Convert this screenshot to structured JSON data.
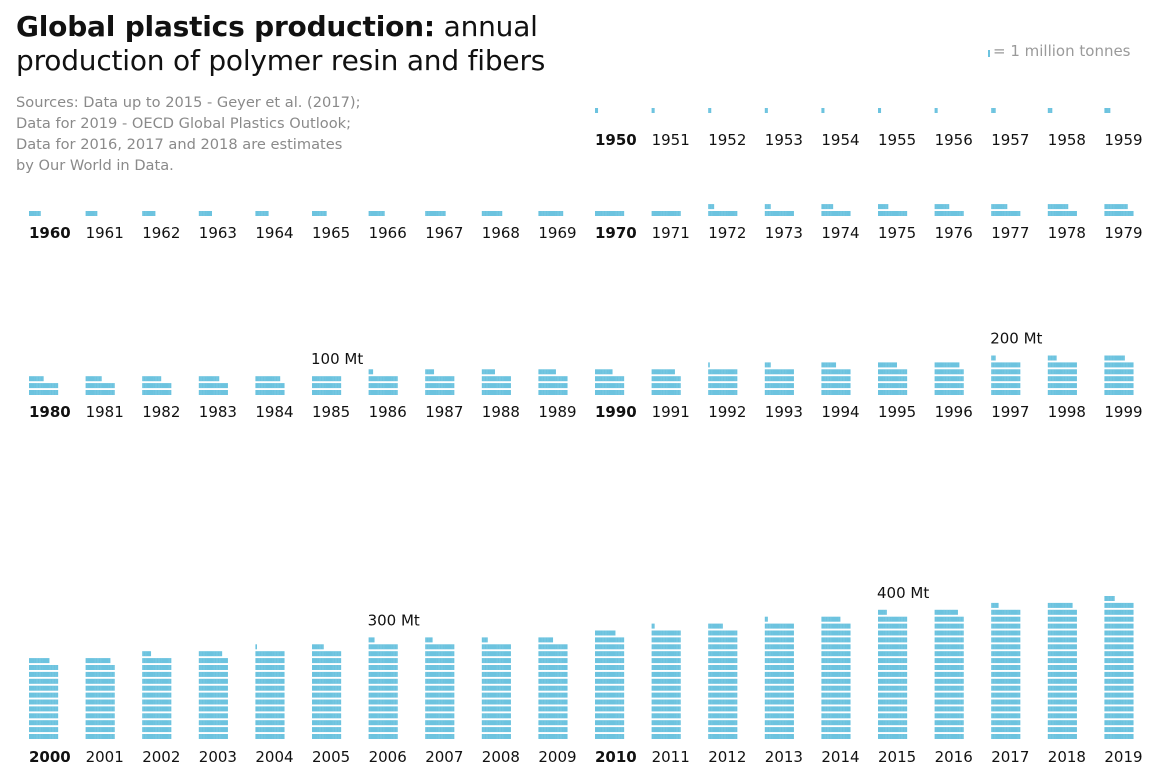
{
  "title": {
    "bold": "Global plastics production:",
    "rest": "annual production of polymer resin and fibers"
  },
  "sources": [
    "Sources: Data up to 2015 - Geyer et al. (2017);",
    "Data for 2019 - OECD Global Plastics Outlook;",
    "Data for 2016, 2017 and 2018 are estimates",
    "by Our World in Data."
  ],
  "legend": {
    "text": "= 1 million tonnes",
    "color": "#6cc3df"
  },
  "chart_data": {
    "type": "bar",
    "unit": "million tonnes",
    "mark_color": "#6cc3df",
    "years": [
      1950,
      1951,
      1952,
      1953,
      1954,
      1955,
      1956,
      1957,
      1958,
      1959,
      1960,
      1961,
      1962,
      1963,
      1964,
      1965,
      1966,
      1967,
      1968,
      1969,
      1970,
      1971,
      1972,
      1973,
      1974,
      1975,
      1976,
      1977,
      1978,
      1979,
      1980,
      1981,
      1982,
      1983,
      1984,
      1985,
      1986,
      1987,
      1988,
      1989,
      1990,
      1991,
      1992,
      1993,
      1994,
      1995,
      1996,
      1997,
      1998,
      1999,
      2000,
      2001,
      2002,
      2003,
      2004,
      2005,
      2006,
      2007,
      2008,
      2009,
      2010,
      2011,
      2012,
      2013,
      2014,
      2015,
      2016,
      2017,
      2018,
      2019
    ],
    "values": [
      2,
      2,
      2,
      2,
      2,
      2,
      2,
      3,
      3,
      4,
      8,
      8,
      9,
      9,
      9,
      10,
      11,
      14,
      14,
      17,
      20,
      20,
      24,
      24,
      28,
      27,
      30,
      31,
      34,
      36,
      50,
      51,
      53,
      54,
      57,
      60,
      63,
      66,
      69,
      72,
      72,
      76,
      81,
      84,
      90,
      93,
      97,
      103,
      106,
      114,
      234,
      237,
      246,
      256,
      261,
      268,
      284,
      285,
      284,
      290,
      314,
      322,
      330,
      342,
      353,
      366,
      376,
      385,
      397,
      407
    ],
    "decade_years": [
      "1950",
      "1960",
      "1970",
      "1980",
      "1990",
      "2000",
      "2010"
    ],
    "milestones": [
      {
        "label": "100 Mt",
        "year": 1985
      },
      {
        "label": "200 Mt",
        "year": 1997
      },
      {
        "label": "300 Mt",
        "year": 2006
      },
      {
        "label": "400 Mt",
        "year": 2015
      }
    ]
  }
}
